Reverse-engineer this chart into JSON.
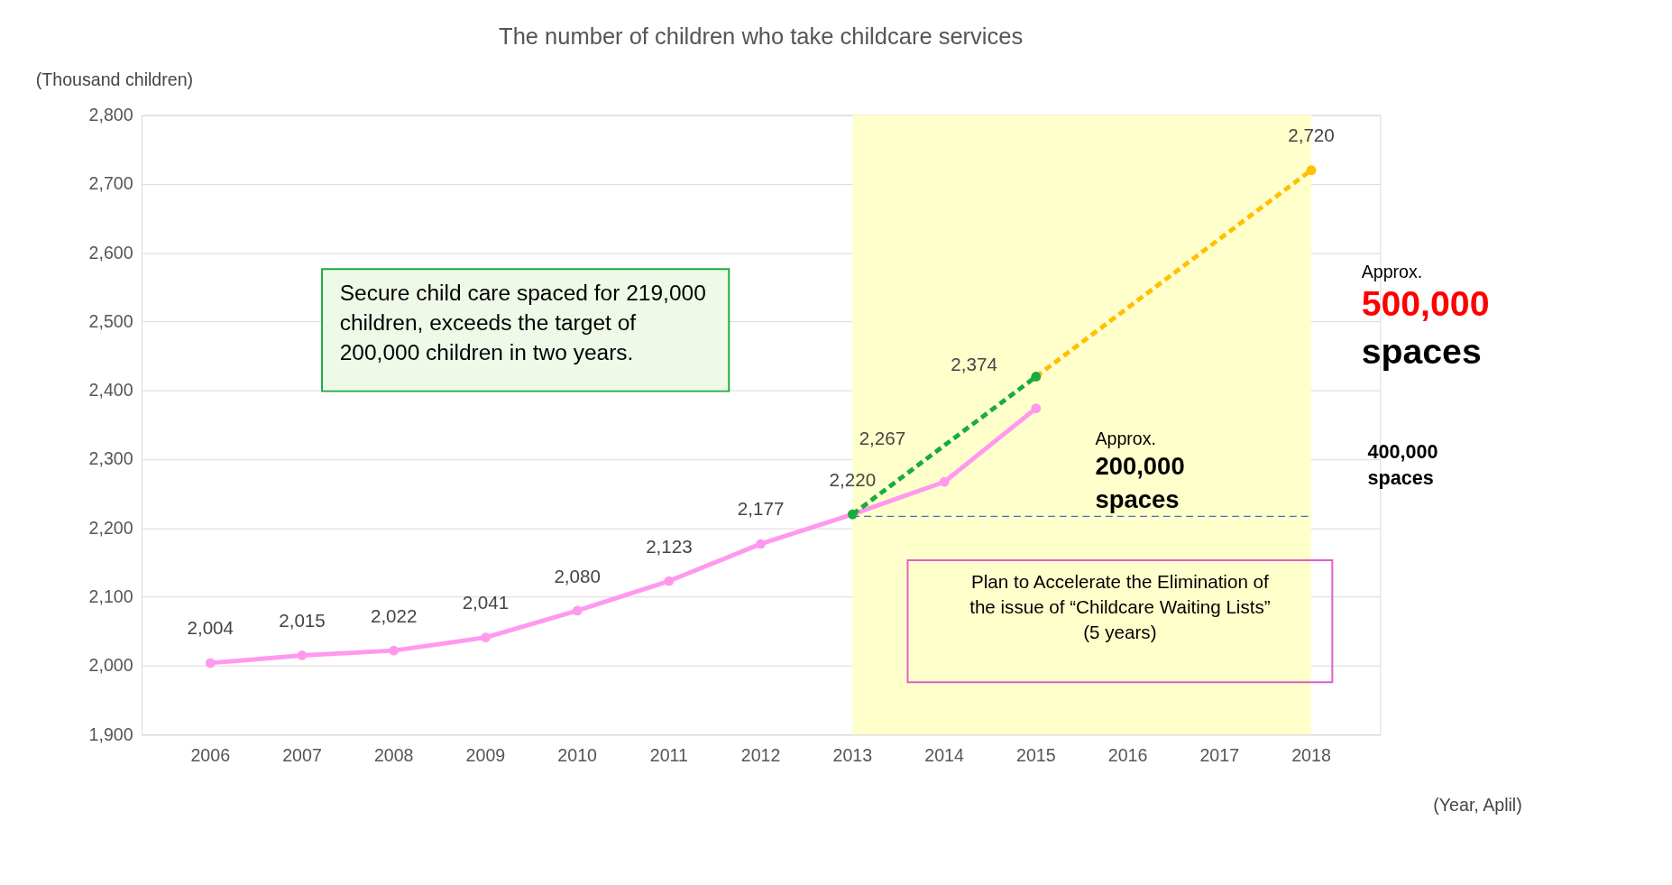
{
  "chart_data": {
    "type": "line",
    "title": "The number of children who take childcare services",
    "ylabel": "(Thousand children)",
    "xlabel": "(Year, Aplil)",
    "categories": [
      "2006",
      "2007",
      "2008",
      "2009",
      "2010",
      "2011",
      "2012",
      "2013",
      "2014",
      "2015",
      "2016",
      "2017",
      "2018"
    ],
    "series": [
      {
        "color": "#ff99ee",
        "values": [
          2004,
          2015,
          2022,
          2041,
          2080,
          2123,
          2177,
          2220,
          2267,
          2374,
          null,
          null,
          null
        ],
        "value_labels": [
          "2,004",
          "2,015",
          "2,022",
          "2,041",
          "2,080",
          "2,123",
          "2,177",
          "2,220",
          "2,267",
          "2,374",
          null,
          null,
          null
        ],
        "line_style": "solid"
      },
      {
        "color": "#ffc000",
        "values": [
          null,
          null,
          null,
          null,
          null,
          null,
          null,
          null,
          null,
          2420,
          null,
          null,
          2720
        ],
        "value_labels": [
          null,
          null,
          null,
          null,
          null,
          null,
          null,
          null,
          null,
          null,
          null,
          null,
          "2,720"
        ],
        "line_style": "dashed"
      },
      {
        "color": "#1aab40",
        "values": [
          null,
          null,
          null,
          null,
          null,
          null,
          null,
          2220,
          null,
          2420,
          null,
          null,
          null
        ],
        "line_style": "dashed"
      }
    ],
    "ylim": [
      1900,
      2800
    ],
    "yticks": [
      {
        "value": 1900,
        "label": "1,900"
      },
      {
        "value": 2000,
        "label": "2,000"
      },
      {
        "value": 2100,
        "label": "2,100"
      },
      {
        "value": 2200,
        "label": "2,200"
      },
      {
        "value": 2300,
        "label": "2,300"
      },
      {
        "value": 2400,
        "label": "2,400"
      },
      {
        "value": 2500,
        "label": "2,500"
      },
      {
        "value": 2600,
        "label": "2,600"
      },
      {
        "value": 2700,
        "label": "2,700"
      },
      {
        "value": 2800,
        "label": "2,800"
      }
    ],
    "bands": [
      {
        "axis": "x",
        "from": "2013",
        "to": "2018",
        "color": "#ffffcc"
      }
    ],
    "ref_lines": [
      {
        "axis": "y",
        "value": 2217,
        "color": "#4472c4",
        "line_style": "dashed"
      }
    ],
    "annotations": [
      "Secure child care spaced for 219,000\nchildren, exceeds the target of\n200,000 children in two years.",
      "Approx.\n200,000\nspaces",
      "Approx.\n500,000\nspaces",
      "400,000\nspaces",
      "Plan to Accelerate the Elimination of\nthe issue of “Childcare Waiting Lists”\n(5 years)"
    ],
    "grid": "y",
    "marker": "circle"
  }
}
